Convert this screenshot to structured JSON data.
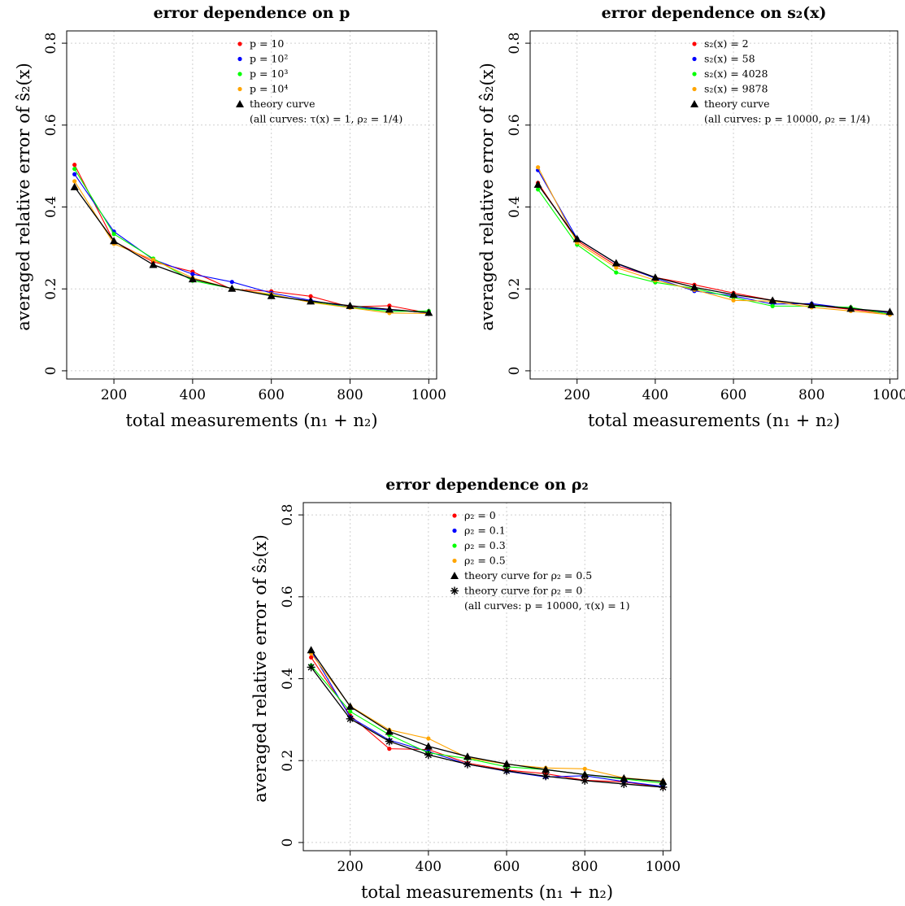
{
  "chart_data": [
    {
      "type": "line",
      "title": "error dependence on p",
      "xlabel": "total measurements (n₁ + n₂)",
      "ylabel": "averaged relative error of ŝ₂(x)",
      "xlim": [
        80,
        1020
      ],
      "ylim": [
        -0.02,
        0.83
      ],
      "xticks": [
        "200",
        "400",
        "600",
        "800",
        "1000"
      ],
      "yticks": [
        "0",
        "0.2",
        "0.4",
        "0.6",
        "0.8"
      ],
      "grid": true,
      "legend_position": "top-right",
      "legend_note": "(all curves: τ(x) = 1, ρ₂ = 1/4)",
      "x": [
        100,
        200,
        300,
        400,
        500,
        600,
        700,
        800,
        900,
        1000
      ],
      "series": [
        {
          "name": "p = 10",
          "color": "#ff0000",
          "marker": "dot",
          "values": [
            0.503,
            0.316,
            0.266,
            0.242,
            0.199,
            0.194,
            0.182,
            0.156,
            0.159,
            0.141
          ]
        },
        {
          "name": "p = 10²",
          "color": "#0000ff",
          "marker": "dot",
          "values": [
            0.48,
            0.34,
            0.272,
            0.236,
            0.217,
            0.19,
            0.172,
            0.155,
            0.149,
            0.142
          ]
        },
        {
          "name": "p = 10³",
          "color": "#00ff00",
          "marker": "dot",
          "values": [
            0.493,
            0.334,
            0.274,
            0.22,
            0.201,
            0.185,
            0.168,
            0.155,
            0.145,
            0.146
          ]
        },
        {
          "name": "p = 10⁴",
          "color": "#ffa500",
          "marker": "dot",
          "values": [
            0.463,
            0.31,
            0.271,
            0.227,
            0.2,
            0.187,
            0.167,
            0.154,
            0.141,
            0.14
          ]
        },
        {
          "name": "theory curve",
          "color": "#000000",
          "marker": "triangle",
          "values": [
            0.449,
            0.317,
            0.259,
            0.224,
            0.201,
            0.183,
            0.17,
            0.159,
            0.15,
            0.142
          ]
        }
      ]
    },
    {
      "type": "line",
      "title": "error dependence on s₂(x)",
      "xlabel": "total measurements (n₁ + n₂)",
      "ylabel": "averaged relative error of ŝ₂(x)",
      "xlim": [
        80,
        1020
      ],
      "ylim": [
        -0.02,
        0.83
      ],
      "xticks": [
        "200",
        "400",
        "600",
        "800",
        "1000"
      ],
      "yticks": [
        "0",
        "0.2",
        "0.4",
        "0.6",
        "0.8"
      ],
      "grid": true,
      "legend_position": "top-right",
      "legend_note": "(all curves: p = 10000, ρ₂ = 1/4)",
      "x": [
        100,
        200,
        300,
        400,
        500,
        600,
        700,
        800,
        900,
        1000
      ],
      "series": [
        {
          "name": "s₂(x) = 2",
          "color": "#ff0000",
          "marker": "dot",
          "values": [
            0.459,
            0.318,
            0.257,
            0.228,
            0.21,
            0.19,
            0.172,
            0.16,
            0.15,
            0.139
          ]
        },
        {
          "name": "s₂(x) = 58",
          "color": "#0000ff",
          "marker": "dot",
          "values": [
            0.49,
            0.323,
            0.262,
            0.226,
            0.195,
            0.183,
            0.163,
            0.164,
            0.152,
            0.142
          ]
        },
        {
          "name": "s₂(x) = 4028",
          "color": "#00ff00",
          "marker": "dot",
          "values": [
            0.443,
            0.308,
            0.24,
            0.216,
            0.201,
            0.179,
            0.158,
            0.158,
            0.155,
            0.138
          ]
        },
        {
          "name": "s₂(x) = 9878",
          "color": "#ffa500",
          "marker": "dot",
          "values": [
            0.497,
            0.313,
            0.252,
            0.221,
            0.198,
            0.172,
            0.17,
            0.155,
            0.146,
            0.137
          ]
        },
        {
          "name": "theory curve",
          "color": "#000000",
          "marker": "triangle",
          "values": [
            0.455,
            0.322,
            0.263,
            0.228,
            0.204,
            0.186,
            0.172,
            0.161,
            0.152,
            0.144
          ]
        }
      ]
    },
    {
      "type": "line",
      "title": "error dependence on ρ₂",
      "xlabel": "total measurements (n₁ + n₂)",
      "ylabel": "averaged relative error of ŝ₂(x)",
      "xlim": [
        80,
        1020
      ],
      "ylim": [
        -0.02,
        0.83
      ],
      "xticks": [
        "200",
        "400",
        "600",
        "800",
        "1000"
      ],
      "yticks": [
        "0",
        "0.2",
        "0.4",
        "0.6",
        "0.8"
      ],
      "grid": true,
      "legend_position": "top-right",
      "legend_note": "(all curves: p = 10000, τ(x) = 1)",
      "x": [
        100,
        200,
        300,
        400,
        500,
        600,
        700,
        800,
        900,
        1000
      ],
      "series": [
        {
          "name": "ρ₂ = 0",
          "color": "#ff0000",
          "marker": "dot",
          "values": [
            0.452,
            0.31,
            0.229,
            0.227,
            0.194,
            0.177,
            0.168,
            0.152,
            0.148,
            0.135
          ]
        },
        {
          "name": "ρ₂ = 0.1",
          "color": "#0000ff",
          "marker": "dot",
          "values": [
            0.468,
            0.306,
            0.25,
            0.222,
            0.191,
            0.174,
            0.16,
            0.163,
            0.149,
            0.137
          ]
        },
        {
          "name": "ρ₂ = 0.3",
          "color": "#00ff00",
          "marker": "dot",
          "values": [
            0.432,
            0.32,
            0.263,
            0.219,
            0.205,
            0.185,
            0.178,
            0.166,
            0.155,
            0.145
          ]
        },
        {
          "name": "ρ₂ = 0.5",
          "color": "#ffa500",
          "marker": "dot",
          "values": [
            0.462,
            0.333,
            0.275,
            0.254,
            0.207,
            0.191,
            0.182,
            0.18,
            0.158,
            0.15
          ]
        },
        {
          "name": "theory curve for ρ₂ = 0.5",
          "color": "#000000",
          "marker": "triangle",
          "values": [
            0.47,
            0.332,
            0.271,
            0.235,
            0.21,
            0.192,
            0.178,
            0.166,
            0.157,
            0.149
          ]
        },
        {
          "name": "theory curve for ρ₂ = 0",
          "color": "#000000",
          "marker": "asterisk",
          "values": [
            0.428,
            0.302,
            0.247,
            0.214,
            0.191,
            0.175,
            0.162,
            0.151,
            0.143,
            0.135
          ]
        }
      ]
    }
  ]
}
